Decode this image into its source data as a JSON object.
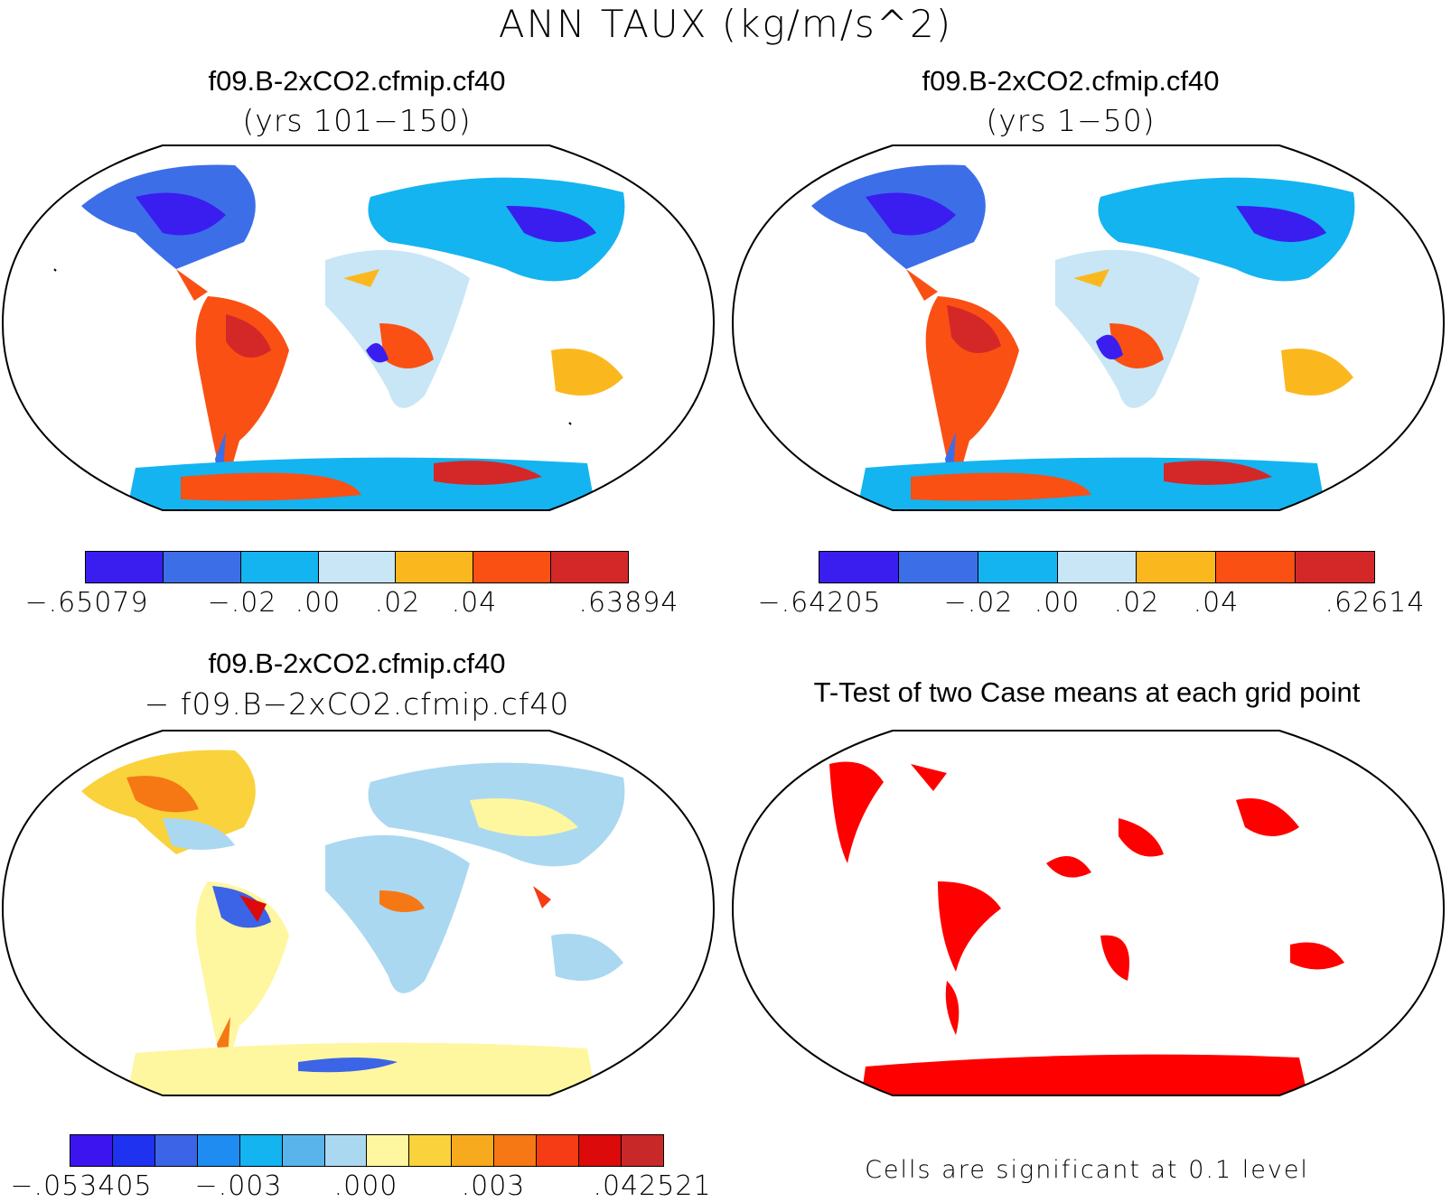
{
  "title": "ANN TAUX (kg/m/s^2)",
  "panels": [
    {
      "title": "f09.B-2xCO2.cfmip.cf40",
      "subtitle": "(yrs 101−150)",
      "colorbar": {
        "colors": [
          "#3a1ef0",
          "#3c6ee8",
          "#14b4f0",
          "#c8e6f5",
          "#fbb81e",
          "#fa5014",
          "#d42828"
        ],
        "labels": [
          "−.65079",
          "−.02",
          ".00",
          ".02",
          ".04",
          ".63894"
        ]
      }
    },
    {
      "title": "f09.B-2xCO2.cfmip.cf40",
      "subtitle": "(yrs 1−50)",
      "colorbar": {
        "colors": [
          "#3a1ef0",
          "#3c6ee8",
          "#14b4f0",
          "#c8e6f5",
          "#fbb81e",
          "#fa5014",
          "#d42828"
        ],
        "labels": [
          "−.64205",
          "−.02",
          ".00",
          ".02",
          ".04",
          ".62614"
        ]
      }
    },
    {
      "title": "f09.B-2xCO2.cfmip.cf40",
      "subtitle": "− f09.B−2xCO2.cfmip.cf40",
      "colorbar": {
        "colors": [
          "#3c14f0",
          "#1e32f0",
          "#3c64e6",
          "#1e8cf0",
          "#14b4f0",
          "#5ab4ec",
          "#aad8f0",
          "#fff6a0",
          "#fad23c",
          "#f8aa1e",
          "#f57814",
          "#f53c14",
          "#dc0a0a",
          "#c82828"
        ],
        "labels": [
          "−.053405",
          "−.003",
          ".000",
          ".003",
          ".042521"
        ]
      }
    },
    {
      "title": "T-Test of two Case means at each grid point",
      "note": "Cells are significant at 0.1 level",
      "color": "#ff0000"
    }
  ]
}
